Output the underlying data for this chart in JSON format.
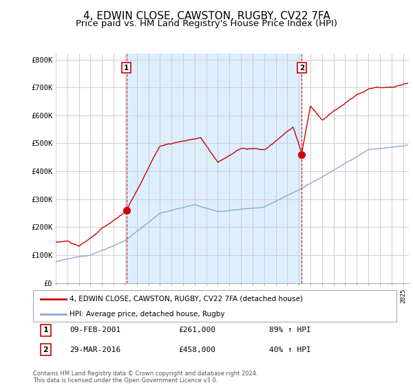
{
  "title": "4, EDWIN CLOSE, CAWSTON, RUGBY, CV22 7FA",
  "subtitle": "Price paid vs. HM Land Registry's House Price Index (HPI)",
  "title_fontsize": 11,
  "subtitle_fontsize": 9.5,
  "ylim": [
    0,
    820000
  ],
  "xlim_start": 1995.0,
  "xlim_end": 2025.5,
  "yticks": [
    0,
    100000,
    200000,
    300000,
    400000,
    500000,
    600000,
    700000,
    800000
  ],
  "ytick_labels": [
    "£0",
    "£100K",
    "£200K",
    "£300K",
    "£400K",
    "£500K",
    "£600K",
    "£700K",
    "£800K"
  ],
  "red_color": "#cc0000",
  "blue_color": "#88aacc",
  "shade_color": "#ddeeff",
  "vline_color": "#cc0000",
  "sale1_year": 2001.1,
  "sale1_price": 261000,
  "sale1_label": "1",
  "sale1_date": "09-FEB-2001",
  "sale1_amount": "£261,000",
  "sale1_hpi": "89% ↑ HPI",
  "sale2_year": 2016.25,
  "sale2_price": 458000,
  "sale2_label": "2",
  "sale2_date": "29-MAR-2016",
  "sale2_amount": "£458,000",
  "sale2_hpi": "40% ↑ HPI",
  "legend_line1": "4, EDWIN CLOSE, CAWSTON, RUGBY, CV22 7FA (detached house)",
  "legend_line2": "HPI: Average price, detached house, Rugby",
  "footnote": "Contains HM Land Registry data © Crown copyright and database right 2024.\nThis data is licensed under the Open Government Licence v3.0.",
  "background_color": "#ffffff",
  "grid_color": "#cccccc"
}
